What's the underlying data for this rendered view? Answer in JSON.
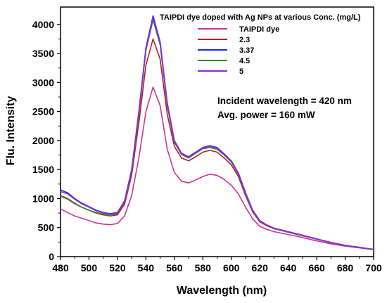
{
  "chart_data": {
    "type": "line",
    "title": "",
    "xlabel": "Wavelength (nm)",
    "ylabel": "Flu. Intensity",
    "xlim": [
      480,
      700
    ],
    "ylim": [
      0,
      4300
    ],
    "xticks": [
      480,
      500,
      520,
      540,
      560,
      580,
      600,
      620,
      640,
      660,
      680,
      700
    ],
    "yticks": [
      0,
      500,
      1000,
      1500,
      2000,
      2500,
      3000,
      3500,
      4000
    ],
    "legend_title": "TAIPDI dye doped with Ag NPs at various Conc. (mg/L)",
    "legend_position": "top-right",
    "annotations": [
      "Incident wavelength = 420 nm",
      "Avg. power = 160 mW"
    ],
    "x": [
      480,
      485,
      490,
      495,
      500,
      505,
      510,
      515,
      520,
      525,
      530,
      535,
      540,
      545,
      550,
      555,
      560,
      565,
      570,
      575,
      580,
      585,
      590,
      595,
      600,
      605,
      610,
      615,
      620,
      625,
      630,
      640,
      650,
      660,
      670,
      680,
      690,
      700
    ],
    "series": [
      {
        "name": "TAIPDI dye",
        "color": "#cc3399",
        "values": [
          820,
          760,
          700,
          660,
          620,
          580,
          560,
          550,
          570,
          700,
          1050,
          1700,
          2500,
          2920,
          2600,
          1850,
          1450,
          1300,
          1270,
          1320,
          1380,
          1420,
          1400,
          1330,
          1230,
          1080,
          850,
          650,
          520,
          470,
          430,
          380,
          330,
          270,
          220,
          180,
          150,
          120
        ]
      },
      {
        "name": "2.3",
        "color": "#b22222",
        "values": [
          1050,
          1000,
          920,
          850,
          800,
          750,
          720,
          700,
          720,
          900,
          1400,
          2300,
          3300,
          3750,
          3400,
          2450,
          1900,
          1700,
          1650,
          1720,
          1800,
          1830,
          1800,
          1700,
          1580,
          1380,
          1050,
          770,
          600,
          530,
          480,
          420,
          360,
          300,
          240,
          190,
          160,
          120
        ]
      },
      {
        "name": "3.37",
        "color": "#1c2bd8",
        "values": [
          1150,
          1100,
          1000,
          920,
          860,
          800,
          760,
          740,
          760,
          960,
          1500,
          2500,
          3600,
          4150,
          3700,
          2650,
          2000,
          1780,
          1720,
          1800,
          1880,
          1910,
          1880,
          1770,
          1650,
          1440,
          1100,
          800,
          620,
          545,
          490,
          430,
          370,
          305,
          245,
          195,
          160,
          125
        ]
      },
      {
        "name": "4.5",
        "color": "#2e8b22",
        "values": [
          1040,
          990,
          910,
          850,
          800,
          760,
          730,
          710,
          740,
          940,
          1450,
          2450,
          3550,
          4080,
          3650,
          2600,
          1970,
          1760,
          1700,
          1780,
          1860,
          1880,
          1850,
          1750,
          1630,
          1420,
          1080,
          790,
          610,
          540,
          485,
          425,
          365,
          300,
          240,
          190,
          155,
          120
        ]
      },
      {
        "name": "5",
        "color": "#8a2be2",
        "values": [
          1120,
          1080,
          990,
          910,
          850,
          790,
          750,
          730,
          750,
          950,
          1480,
          2480,
          3580,
          4120,
          3680,
          2630,
          1990,
          1770,
          1710,
          1790,
          1870,
          1900,
          1870,
          1760,
          1640,
          1430,
          1090,
          795,
          615,
          542,
          488,
          428,
          368,
          302,
          242,
          192,
          158,
          122
        ]
      }
    ]
  }
}
